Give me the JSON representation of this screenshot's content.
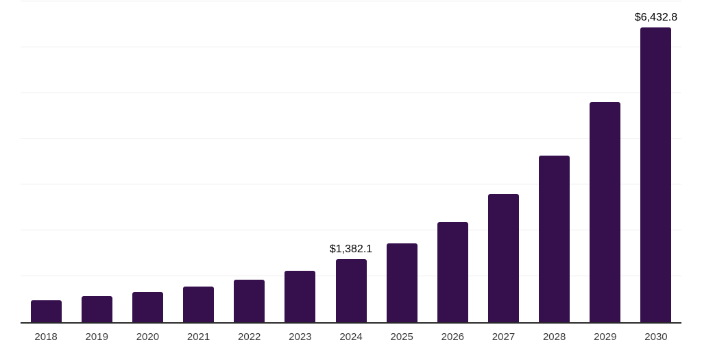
{
  "chart_data": {
    "type": "bar",
    "title": "",
    "xlabel": "",
    "ylabel": "",
    "categories": [
      "2018",
      "2019",
      "2020",
      "2021",
      "2022",
      "2023",
      "2024",
      "2025",
      "2026",
      "2027",
      "2028",
      "2029",
      "2030"
    ],
    "values": [
      480,
      570,
      660,
      775,
      930,
      1115,
      1382.1,
      1715,
      2180,
      2790,
      3630,
      4805,
      6432.8
    ],
    "data_labels": [
      "",
      "",
      "",
      "",
      "",
      "",
      "$1,382.1",
      "",
      "",
      "",
      "",
      "",
      "$6,432.8"
    ],
    "ylim": [
      0,
      7000
    ],
    "gridline_step": 1000,
    "grid": true,
    "legend": "none",
    "colors": {
      "bar_fill": "#36104d",
      "axis_line": "#2a2a2a",
      "gridline": "#ececec",
      "tick_label": "#3a3a3a",
      "data_label": "#000000",
      "background": "#ffffff"
    }
  }
}
